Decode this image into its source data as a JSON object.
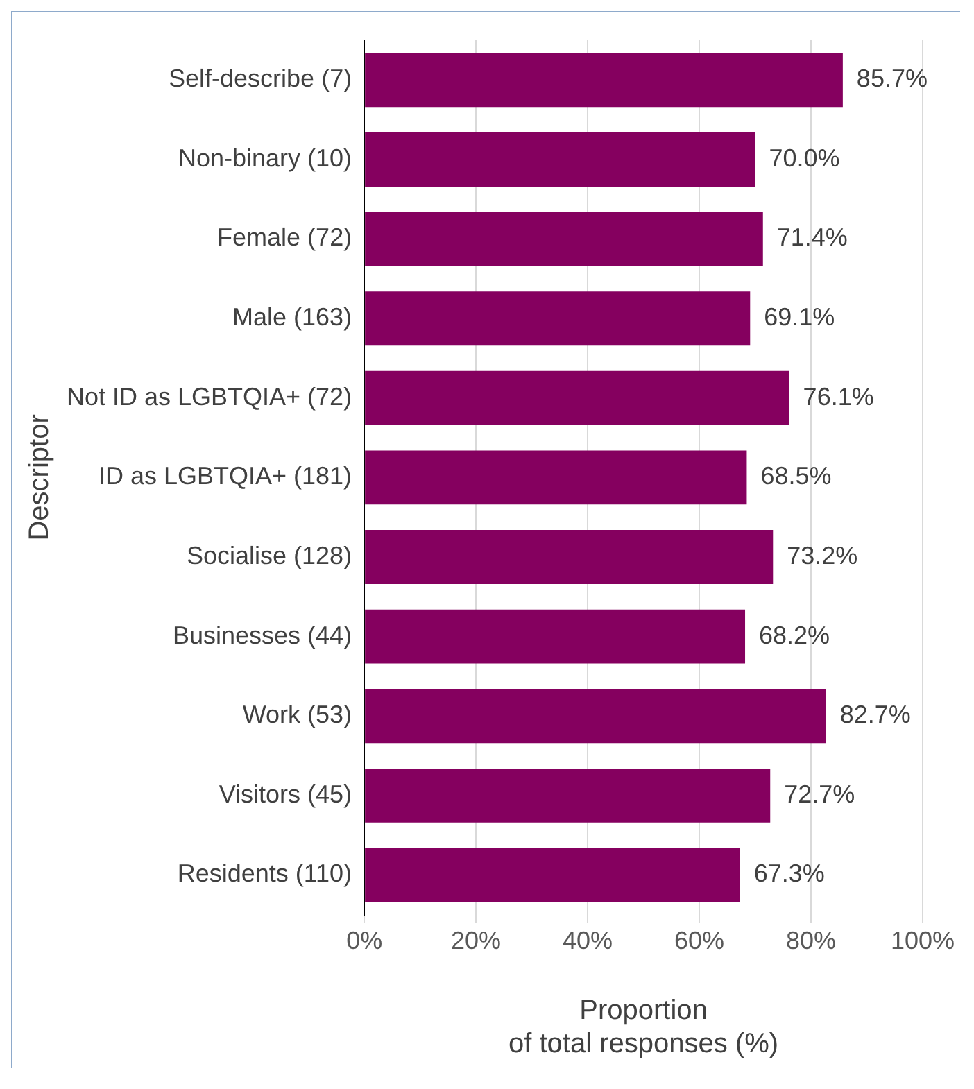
{
  "chart_data": {
    "type": "bar",
    "orientation": "horizontal",
    "ylabel": "Descriptor",
    "xlabel": "Proportion\nof total responses (%)",
    "categories": [
      "Self-describe (7)",
      "Non-binary (10)",
      "Female (72)",
      "Male (163)",
      "Not ID as LGBTQIA+ (72)",
      "ID as LGBTQIA+ (181)",
      "Socialise (128)",
      "Businesses (44)",
      "Work (53)",
      "Visitors (45)",
      "Residents (110)"
    ],
    "values": [
      85.7,
      70.0,
      71.4,
      69.1,
      76.1,
      68.5,
      73.2,
      68.2,
      82.7,
      72.7,
      67.3
    ],
    "value_labels": [
      "85.7%",
      "70.0%",
      "71.4%",
      "69.1%",
      "76.1%",
      "68.5%",
      "73.2%",
      "68.2%",
      "82.7%",
      "72.7%",
      "67.3%"
    ],
    "color": "#85005f",
    "xlim": [
      0,
      100
    ],
    "xticks": [
      {
        "value": 0,
        "label": "0%"
      },
      {
        "value": 20,
        "label": "20%"
      },
      {
        "value": 40,
        "label": "40%"
      },
      {
        "value": 60,
        "label": "60%"
      },
      {
        "value": 80,
        "label": "80%"
      },
      {
        "value": 100,
        "label": "100%"
      }
    ],
    "grid": "x",
    "legend": false
  }
}
